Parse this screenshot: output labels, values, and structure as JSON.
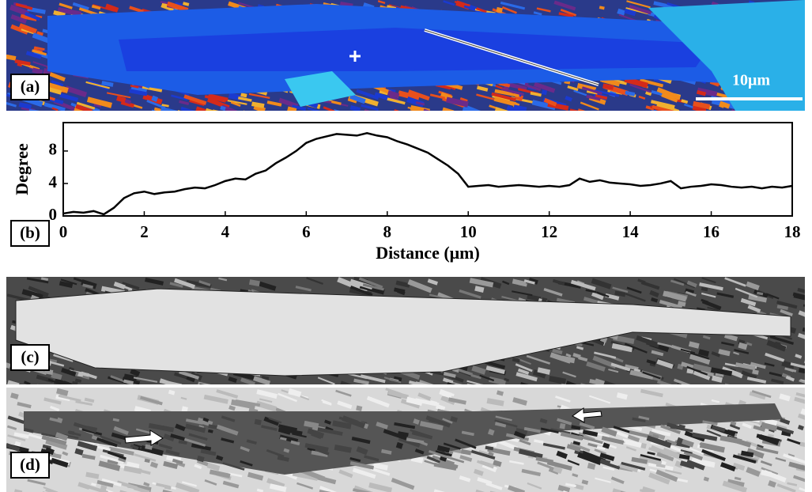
{
  "panels": {
    "labels": [
      "(a)",
      "(b)",
      "(c)",
      "(d)"
    ],
    "scale_bar": "10μm"
  },
  "chart_data": {
    "type": "line",
    "xlabel": "Distance (μm)",
    "ylabel": "Degree",
    "x": [
      0,
      0.25,
      0.5,
      0.75,
      1,
      1.25,
      1.5,
      1.75,
      2,
      2.25,
      2.5,
      2.75,
      3,
      3.25,
      3.5,
      3.75,
      4,
      4.25,
      4.5,
      4.75,
      5,
      5.25,
      5.5,
      5.75,
      6,
      6.25,
      6.5,
      6.75,
      7,
      7.25,
      7.5,
      7.75,
      8,
      8.25,
      8.5,
      8.75,
      9,
      9.25,
      9.5,
      9.75,
      10,
      10.25,
      10.5,
      10.75,
      11,
      11.25,
      11.5,
      11.75,
      12,
      12.25,
      12.5,
      12.75,
      13,
      13.25,
      13.5,
      13.75,
      14,
      14.25,
      14.5,
      14.75,
      15,
      15.25,
      15.5,
      15.75,
      16,
      16.25,
      16.5,
      16.75,
      17,
      17.25,
      17.5,
      17.75,
      18
    ],
    "series": [
      {
        "name": null,
        "color": "#000000",
        "values": [
          0.3,
          0.5,
          0.4,
          0.6,
          0.2,
          1.0,
          2.2,
          2.8,
          3.0,
          2.7,
          2.9,
          3.0,
          3.3,
          3.5,
          3.4,
          3.8,
          4.3,
          4.6,
          4.5,
          5.2,
          5.6,
          6.5,
          7.2,
          8.0,
          9.0,
          9.5,
          9.8,
          10.1,
          10.0,
          9.9,
          10.2,
          9.9,
          9.7,
          9.2,
          8.8,
          8.3,
          7.8,
          7.0,
          6.2,
          5.2,
          3.6,
          3.7,
          3.8,
          3.6,
          3.7,
          3.8,
          3.7,
          3.6,
          3.7,
          3.6,
          3.8,
          4.6,
          4.2,
          4.4,
          4.1,
          4.0,
          3.9,
          3.7,
          3.8,
          4.0,
          4.3,
          3.4,
          3.6,
          3.7,
          3.9,
          3.8,
          3.6,
          3.5,
          3.6,
          3.4,
          3.6,
          3.5,
          3.7
        ]
      }
    ],
    "xlim": [
      0,
      18
    ],
    "xticks": [
      0,
      2,
      4,
      6,
      8,
      10,
      12,
      14,
      16,
      18
    ],
    "ylim": [
      0,
      11.5
    ],
    "yticks": [
      0,
      4,
      8
    ]
  }
}
